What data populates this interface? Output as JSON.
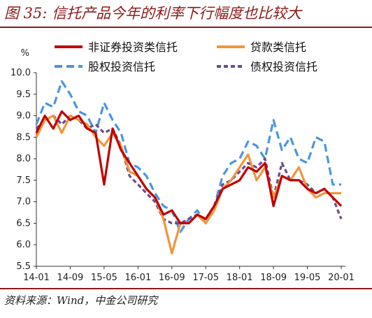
{
  "title": "图 35: 信托产品今年的利率下行幅度也比较大",
  "source": "资料来源：Wind，中金公司研究",
  "chart_data": {
    "type": "line",
    "y_unit": "%",
    "ylim": [
      5.5,
      10.0
    ],
    "yticks": [
      5.5,
      6.0,
      6.5,
      7.0,
      7.5,
      8.0,
      8.5,
      9.0,
      9.5,
      10.0
    ],
    "ytick_labels": [
      "5.5",
      "6.0",
      "6.5",
      "7.0",
      "7.5",
      "8.0",
      "8.5",
      "9.0",
      "9.5",
      "10.0"
    ],
    "x": [
      "14-01",
      "14-03",
      "14-05",
      "14-07",
      "14-09",
      "14-11",
      "15-01",
      "15-03",
      "15-05",
      "15-07",
      "15-09",
      "15-11",
      "16-01",
      "16-03",
      "16-05",
      "16-07",
      "16-09",
      "16-11",
      "17-01",
      "17-03",
      "17-05",
      "17-07",
      "17-09",
      "17-11",
      "18-01",
      "18-03",
      "18-05",
      "18-07",
      "18-09",
      "18-11",
      "19-01",
      "19-03",
      "19-05",
      "19-07",
      "19-09",
      "19-11",
      "20-01"
    ],
    "xtick_labels": [
      "14-01",
      "14-09",
      "15-05",
      "16-01",
      "16-09",
      "17-05",
      "18-01",
      "18-09",
      "19-05",
      "20-01"
    ],
    "xtick_index": [
      0,
      4,
      8,
      12,
      16,
      20,
      24,
      28,
      32,
      36
    ],
    "grid": false,
    "legend_position": "top",
    "series": [
      {
        "name": "非证券投资类信托",
        "color": "#c00000",
        "dash": "solid",
        "values": [
          8.6,
          9.0,
          8.7,
          9.1,
          8.9,
          9.0,
          8.7,
          8.6,
          7.4,
          8.7,
          8.2,
          7.9,
          7.6,
          7.3,
          7.1,
          6.7,
          6.8,
          6.5,
          6.5,
          6.7,
          6.6,
          6.9,
          7.3,
          7.4,
          7.5,
          7.8,
          7.7,
          7.9,
          6.9,
          7.6,
          7.5,
          7.5,
          7.3,
          7.2,
          7.3,
          7.1,
          6.9
        ]
      },
      {
        "name": "贷款类信托",
        "color": "#f0963c",
        "dash": "solid",
        "values": [
          8.5,
          8.9,
          9.0,
          8.6,
          9.0,
          8.9,
          8.8,
          8.5,
          8.3,
          8.6,
          8.3,
          7.7,
          7.6,
          7.3,
          7.1,
          6.6,
          5.8,
          6.5,
          6.5,
          6.7,
          6.5,
          6.8,
          7.3,
          7.5,
          7.8,
          8.1,
          7.5,
          7.8,
          7.1,
          7.6,
          7.5,
          7.8,
          7.3,
          7.1,
          7.2,
          7.2,
          7.2
        ]
      },
      {
        "name": "股权投资信托",
        "color": "#4a96e0",
        "dash": "long",
        "values": [
          8.8,
          9.3,
          9.2,
          9.8,
          9.5,
          9.1,
          9.0,
          8.6,
          9.3,
          8.9,
          8.6,
          7.9,
          7.8,
          7.6,
          7.2,
          6.9,
          6.8,
          6.3,
          6.6,
          6.8,
          6.5,
          6.9,
          7.6,
          7.9,
          8.0,
          8.4,
          8.3,
          8.0,
          8.9,
          8.2,
          8.5,
          8.0,
          7.9,
          8.5,
          8.4,
          7.4,
          7.4
        ]
      },
      {
        "name": "债权投资信托",
        "color": "#6a4c8c",
        "dash": "short",
        "values": [
          8.7,
          8.9,
          9.0,
          8.8,
          9.0,
          8.9,
          8.7,
          8.8,
          8.6,
          8.7,
          8.3,
          7.6,
          7.4,
          7.2,
          7.0,
          6.6,
          6.5,
          6.5,
          6.6,
          6.7,
          6.6,
          6.9,
          7.4,
          7.5,
          7.7,
          7.9,
          7.8,
          8.0,
          7.1,
          7.9,
          7.5,
          7.5,
          7.4,
          7.2,
          7.3,
          7.1,
          6.6
        ]
      }
    ]
  }
}
